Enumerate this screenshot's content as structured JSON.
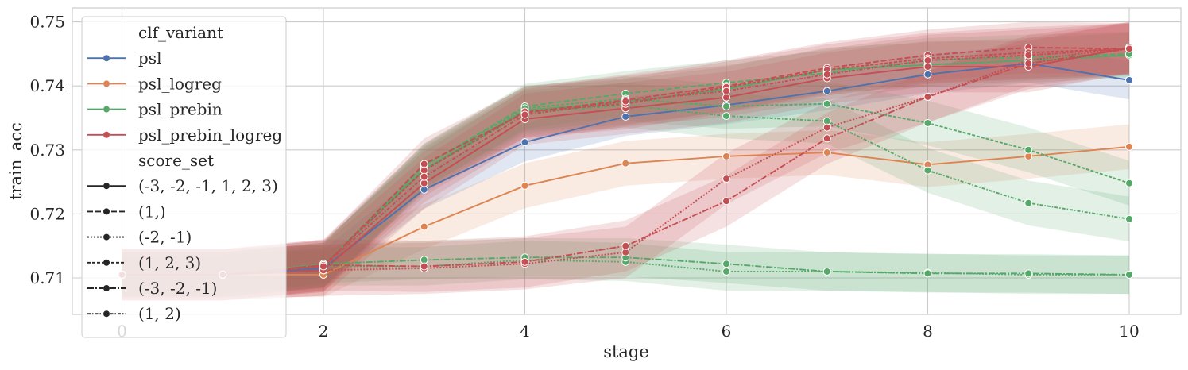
{
  "chart_data": {
    "type": "line",
    "xlabel": "stage",
    "ylabel": "train_acc",
    "xlim": [
      -0.5,
      10.5
    ],
    "ylim": [
      0.7045,
      0.7523
    ],
    "x_ticks": [
      "0",
      "2",
      "4",
      "6",
      "8",
      "10"
    ],
    "y_ticks": [
      "0.71",
      "0.72",
      "0.73",
      "0.74",
      "0.75"
    ],
    "grid": true,
    "legend_position": "upper-left",
    "legend": {
      "hue_title": "clf_variant",
      "hue_entries": [
        "psl",
        "psl_logreg",
        "psl_prebin",
        "psl_prebin_logreg"
      ],
      "style_title": "score_set",
      "style_entries": [
        "(-3, -2, -1, 1, 2, 3)",
        "(1,)",
        "(-2, -1)",
        "(1, 2, 3)",
        "(-3, -2, -1)",
        "(1, 2)"
      ]
    },
    "colors": {
      "psl": "#4c72b0",
      "psl_logreg": "#dd8452",
      "psl_prebin": "#55a868",
      "psl_prebin_logreg": "#c44e52"
    },
    "series": [
      {
        "variant": "psl",
        "score_set": "(-3, -2, -1, 1, 2, 3)",
        "x": [
          0,
          1,
          2,
          3,
          4,
          5,
          6,
          7,
          8,
          9,
          10
        ],
        "y": [
          0.7105,
          0.7105,
          0.7115,
          0.7238,
          0.7312,
          0.7352,
          0.737,
          0.7392,
          0.7418,
          0.7435,
          0.7409
        ],
        "band": 0.003
      },
      {
        "variant": "psl_logreg",
        "score_set": "(-3, -2, -1, 1, 2, 3)",
        "x": [
          0,
          1,
          2,
          3,
          4,
          5,
          6,
          7,
          8,
          9,
          10
        ],
        "y": [
          0.7105,
          0.7105,
          0.7105,
          0.718,
          0.7244,
          0.7279,
          0.729,
          0.7296,
          0.7277,
          0.729,
          0.7305
        ],
        "band": 0.0035
      },
      {
        "variant": "psl_prebin",
        "score_set": "(-3, -2, -1, 1, 2, 3)",
        "x": [
          0,
          1,
          2,
          3,
          4,
          5,
          6,
          7,
          8,
          9,
          10
        ],
        "y": [
          0.7105,
          0.7105,
          0.712,
          0.727,
          0.7362,
          0.7375,
          0.7395,
          0.7425,
          0.7433,
          0.744,
          0.7448
        ],
        "band": 0.0035
      },
      {
        "variant": "psl_prebin",
        "score_set": "(1,)",
        "x": [
          0,
          1,
          2,
          3,
          4,
          5,
          6,
          7,
          8,
          9,
          10
        ],
        "y": [
          0.7105,
          0.7105,
          0.7118,
          0.7275,
          0.7368,
          0.7388,
          0.7405,
          0.742,
          0.744,
          0.7445,
          0.745
        ],
        "band": 0.0035
      },
      {
        "variant": "psl_prebin",
        "score_set": "(-2, -1)",
        "x": [
          0,
          1,
          2,
          3,
          4,
          5,
          6,
          7,
          8,
          9,
          10
        ],
        "y": [
          0.7105,
          0.7105,
          0.7118,
          0.7118,
          0.7128,
          0.7125,
          0.711,
          0.711,
          0.7108,
          0.7105,
          0.7105
        ],
        "band": 0.003
      },
      {
        "variant": "psl_prebin",
        "score_set": "(1, 2, 3)",
        "x": [
          0,
          1,
          2,
          3,
          4,
          5,
          6,
          7,
          8,
          9,
          10
        ],
        "y": [
          0.7105,
          0.7105,
          0.712,
          0.7275,
          0.7365,
          0.738,
          0.7368,
          0.7372,
          0.7342,
          0.73,
          0.7248
        ],
        "band": 0.0035
      },
      {
        "variant": "psl_prebin",
        "score_set": "(-3, -2, -1)",
        "x": [
          0,
          1,
          2,
          3,
          4,
          5,
          6,
          7,
          8,
          9,
          10
        ],
        "y": [
          0.7105,
          0.7105,
          0.7122,
          0.7128,
          0.7132,
          0.7132,
          0.7122,
          0.711,
          0.7107,
          0.7107,
          0.7105
        ],
        "band": 0.003
      },
      {
        "variant": "psl_prebin",
        "score_set": "(1, 2)",
        "x": [
          0,
          1,
          2,
          3,
          4,
          5,
          6,
          7,
          8,
          9,
          10
        ],
        "y": [
          0.7105,
          0.7105,
          0.712,
          0.7268,
          0.7358,
          0.737,
          0.7353,
          0.7345,
          0.7268,
          0.7217,
          0.7192
        ],
        "band": 0.0035
      },
      {
        "variant": "psl_prebin_logreg",
        "score_set": "(-3, -2, -1, 1, 2, 3)",
        "x": [
          0,
          1,
          2,
          3,
          4,
          5,
          6,
          7,
          8,
          9,
          10
        ],
        "y": [
          0.7105,
          0.7105,
          0.7112,
          0.7248,
          0.7348,
          0.7365,
          0.7382,
          0.7412,
          0.743,
          0.743,
          0.746
        ],
        "band": 0.004
      },
      {
        "variant": "psl_prebin_logreg",
        "score_set": "(1,)",
        "x": [
          0,
          1,
          2,
          3,
          4,
          5,
          6,
          7,
          8,
          9,
          10
        ],
        "y": [
          0.7105,
          0.7105,
          0.7118,
          0.7278,
          0.7358,
          0.7378,
          0.74,
          0.7428,
          0.7448,
          0.746,
          0.7458
        ],
        "band": 0.004
      },
      {
        "variant": "psl_prebin_logreg",
        "score_set": "(-2, -1)",
        "x": [
          0,
          1,
          2,
          3,
          4,
          5,
          6,
          7,
          8,
          9,
          10
        ],
        "y": [
          0.7105,
          0.7105,
          0.7112,
          0.7115,
          0.7122,
          0.714,
          0.7255,
          0.7335,
          0.7383,
          0.744,
          0.746
        ],
        "band": 0.004
      },
      {
        "variant": "psl_prebin_logreg",
        "score_set": "(1, 2, 3)",
        "x": [
          0,
          1,
          2,
          3,
          4,
          5,
          6,
          7,
          8,
          9,
          10
        ],
        "y": [
          0.7105,
          0.7105,
          0.712,
          0.7268,
          0.736,
          0.7372,
          0.7398,
          0.7425,
          0.7443,
          0.7452,
          0.7458
        ],
        "band": 0.004
      },
      {
        "variant": "psl_prebin_logreg",
        "score_set": "(-3, -2, -1)",
        "x": [
          0,
          1,
          2,
          3,
          4,
          5,
          6,
          7,
          8,
          9,
          10
        ],
        "y": [
          0.7105,
          0.7105,
          0.712,
          0.7118,
          0.7125,
          0.715,
          0.722,
          0.7318,
          0.7383,
          0.7435,
          0.7458
        ],
        "band": 0.004
      },
      {
        "variant": "psl_prebin_logreg",
        "score_set": "(1, 2)",
        "x": [
          0,
          1,
          2,
          3,
          4,
          5,
          6,
          7,
          8,
          9,
          10
        ],
        "y": [
          0.7105,
          0.7105,
          0.7118,
          0.7258,
          0.7355,
          0.7376,
          0.7392,
          0.7418,
          0.744,
          0.7448,
          0.7458
        ],
        "band": 0.004
      }
    ]
  }
}
